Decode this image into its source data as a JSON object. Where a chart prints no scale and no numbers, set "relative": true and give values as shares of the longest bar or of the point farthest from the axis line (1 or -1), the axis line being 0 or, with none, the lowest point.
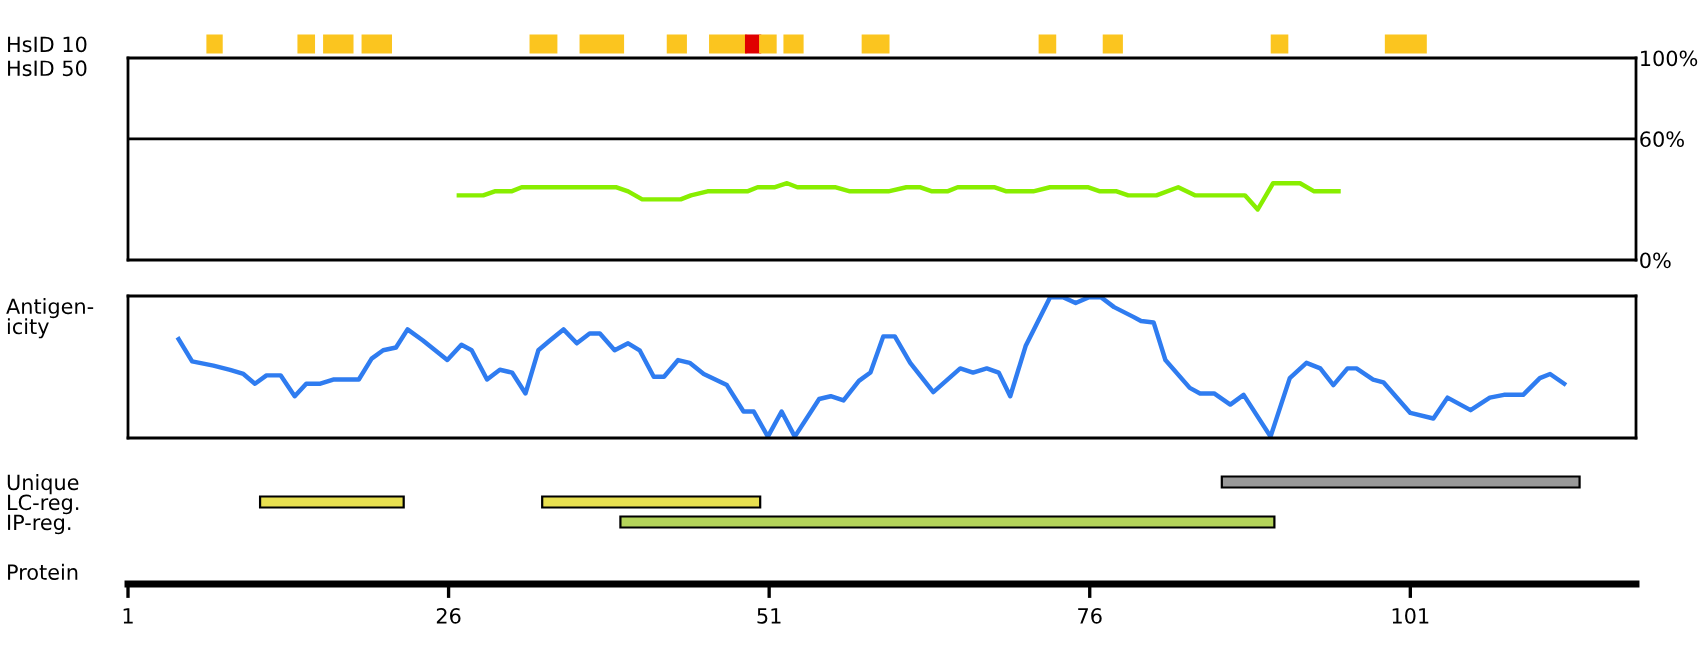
{
  "chart_data": [
    {
      "type": "bar",
      "orientation": "horizontal",
      "categories": [
        "HsID 10"
      ],
      "xlim": [
        1,
        118.6
      ],
      "tick_labels": "y",
      "series": [
        {
          "color": "#fbc51f",
          "base": [
            7.2
          ],
          "values": [
            1.1
          ]
        },
        {
          "color": "#fbc51f",
          "base": [
            14.3
          ],
          "values": [
            1.2
          ]
        },
        {
          "color": "#fbc51f",
          "base": [
            16.3
          ],
          "values": [
            2.2
          ]
        },
        {
          "color": "#fbc51f",
          "base": [
            19.3
          ],
          "values": [
            2.2
          ]
        },
        {
          "color": "#fbc51f",
          "base": [
            32.4
          ],
          "values": [
            2.0
          ]
        },
        {
          "color": "#fbc51f",
          "base": [
            36.3
          ],
          "values": [
            3.3
          ]
        },
        {
          "color": "#fbc51f",
          "base": [
            43.1
          ],
          "values": [
            1.4
          ]
        },
        {
          "color": "#fbc51f",
          "base": [
            46.4
          ],
          "values": [
            2.8
          ]
        },
        {
          "color": "#e00000",
          "base": [
            49.2
          ],
          "values": [
            1.1
          ]
        },
        {
          "color": "#fbc51f",
          "base": [
            50.3
          ],
          "values": [
            1.2
          ]
        },
        {
          "color": "#fbc51f",
          "base": [
            52.2
          ],
          "values": [
            1.4
          ]
        },
        {
          "color": "#fbc51f",
          "base": [
            58.3
          ],
          "values": [
            2.0
          ]
        },
        {
          "color": "#fbc51f",
          "base": [
            72.1
          ],
          "values": [
            1.2
          ]
        },
        {
          "color": "#fbc51f",
          "base": [
            77.1
          ],
          "values": [
            1.4
          ]
        },
        {
          "color": "#fbc51f",
          "base": [
            90.2
          ],
          "values": [
            1.2
          ]
        },
        {
          "color": "#fbc51f",
          "base": [
            99.1
          ],
          "values": [
            3.1
          ]
        }
      ]
    },
    {
      "type": "line",
      "ylabel": "HsID 50",
      "xlim": [
        1,
        118.6
      ],
      "ylim": [
        0,
        100
      ],
      "yticks": [
        {
          "value": 0,
          "label": "0%"
        },
        {
          "value": 60,
          "label": "60%"
        },
        {
          "value": 100,
          "label": "100%"
        }
      ],
      "tick_labels": "y",
      "ref_lines": [
        {
          "axis": "y",
          "value": 60,
          "color": "#000000"
        }
      ],
      "series": [
        {
          "color": "#88ee00",
          "x": [
            26.8,
            28.7,
            29.6,
            30.9,
            31.7,
            39.1,
            40.0,
            41.1,
            44.1,
            44.9,
            46.2,
            49.3,
            50.1,
            51.4,
            52.4,
            53.2,
            56.2,
            57.3,
            60.3,
            61.7,
            62.8,
            63.7,
            64.9,
            65.7,
            68.6,
            69.5,
            71.6,
            72.9,
            75.9,
            76.8,
            78.1,
            79.0,
            81.2,
            82.9,
            84.2,
            88.1,
            89.1,
            90.3,
            92.4,
            93.5,
            95.4
          ],
          "values": [
            32,
            32,
            34,
            34,
            36,
            36,
            34,
            30,
            30,
            32,
            34,
            34,
            36,
            36,
            38,
            36,
            36,
            34,
            34,
            36,
            36,
            34,
            34,
            36,
            36,
            34,
            34,
            36,
            36,
            34,
            34,
            32,
            32,
            36,
            32,
            32,
            25,
            38,
            38,
            34,
            34
          ]
        }
      ]
    },
    {
      "type": "line",
      "ylabel": "Antigen-\nicity",
      "relative": true,
      "xlim": [
        1,
        118.6
      ],
      "tick_labels": false,
      "series": [
        {
          "color": "#2f7cf0",
          "x": [
            4.95,
            6.0,
            7.66,
            8.96,
            10.0,
            10.9,
            11.8,
            12.9,
            14.0,
            14.9,
            16.0,
            17.0,
            19.0,
            20.0,
            20.9,
            21.9,
            22.8,
            24.0,
            25.9,
            27.0,
            27.8,
            29.0,
            30.0,
            30.95,
            32.0,
            33.0,
            33.9,
            34.96,
            36.0,
            37.0,
            37.8,
            38.95,
            40.0,
            40.9,
            42.0,
            42.8,
            43.9,
            44.8,
            45.9,
            47.7,
            49.0,
            49.8,
            50.9,
            51.97,
            53.0,
            54.9,
            55.8,
            56.8,
            58.0,
            58.9,
            59.9,
            60.8,
            62.0,
            63.8,
            65.9,
            66.9,
            67.97,
            68.9,
            69.8,
            71.0,
            72.9,
            73.96,
            74.9,
            75.9,
            76.9,
            77.9,
            79.4,
            80.0,
            80.98,
            81.9,
            83.8,
            84.6,
            85.7,
            86.96,
            88.0,
            90.1,
            91.6,
            92.9,
            93.98,
            95.0,
            96.1,
            96.8,
            98.1,
            98.9,
            101.0,
            102.8,
            103.9,
            105.7,
            107.2,
            108.3,
            109.8,
            111.1,
            111.9,
            113.0
          ],
          "values": [
            0.7,
            0.54,
            0.51,
            0.48,
            0.45,
            0.38,
            0.44,
            0.44,
            0.29,
            0.38,
            0.38,
            0.41,
            0.41,
            0.56,
            0.62,
            0.64,
            0.77,
            0.69,
            0.55,
            0.66,
            0.62,
            0.41,
            0.48,
            0.46,
            0.31,
            0.62,
            0.69,
            0.77,
            0.67,
            0.74,
            0.74,
            0.62,
            0.67,
            0.62,
            0.43,
            0.43,
            0.55,
            0.53,
            0.45,
            0.37,
            0.18,
            0.18,
            0.0,
            0.18,
            0.0,
            0.27,
            0.29,
            0.26,
            0.4,
            0.46,
            0.72,
            0.72,
            0.53,
            0.32,
            0.49,
            0.46,
            0.49,
            0.46,
            0.29,
            0.65,
            1.0,
            1.0,
            0.96,
            1.0,
            1.0,
            0.93,
            0.86,
            0.83,
            0.82,
            0.55,
            0.35,
            0.31,
            0.31,
            0.23,
            0.3,
            0.0,
            0.42,
            0.53,
            0.49,
            0.37,
            0.49,
            0.49,
            0.41,
            0.39,
            0.17,
            0.13,
            0.28,
            0.19,
            0.28,
            0.3,
            0.3,
            0.42,
            0.45,
            0.38
          ]
        }
      ]
    },
    {
      "type": "bar",
      "orientation": "horizontal",
      "categories": [
        "Unique",
        "LC-reg.",
        "IP-reg."
      ],
      "xlabel": "Protein",
      "xlim": [
        1,
        118.6
      ],
      "xticks": [
        1,
        26,
        51,
        76,
        101
      ],
      "series": [
        {
          "color": "#999999",
          "base": [
            86.3,
            null,
            null
          ],
          "values": [
            27.9,
            null,
            null
          ]
        },
        {
          "color": "#e8e050",
          "base": [
            null,
            11.3,
            null
          ],
          "values": [
            null,
            11.2,
            null
          ]
        },
        {
          "color": "#e8e050",
          "base": [
            null,
            33.3,
            null
          ],
          "values": [
            null,
            17.0,
            null
          ]
        },
        {
          "color": "#b4d45a",
          "base": [
            null,
            null,
            39.4
          ],
          "values": [
            null,
            null,
            51.0
          ]
        }
      ]
    }
  ]
}
